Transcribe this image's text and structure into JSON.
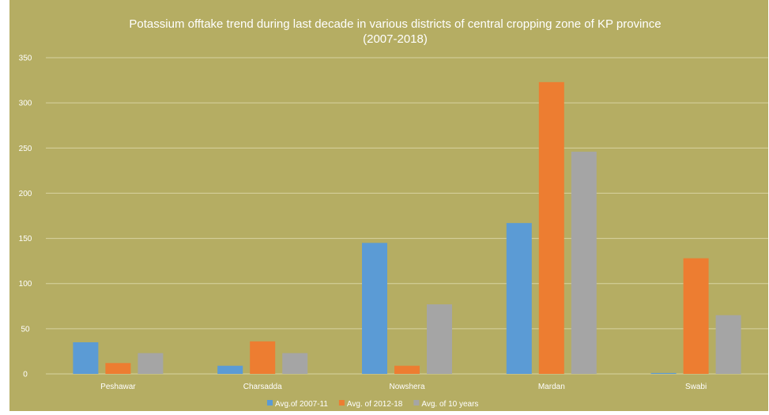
{
  "chart_data": {
    "type": "bar",
    "title": "Potassium offtake trend during last decade in various districts of  central cropping zone of KP province",
    "subtitle": "(2007-2018)",
    "xlabel": "",
    "ylabel": "",
    "categories": [
      "Peshawar",
      "Charsadda",
      "Nowshera",
      "Mardan",
      "Swabi"
    ],
    "series": [
      {
        "name": "Avg.of 2007-11",
        "color": "#5b9bd5",
        "values": [
          35,
          9,
          145,
          167,
          1
        ]
      },
      {
        "name": "Avg. of 2012-18",
        "color": "#ed7d31",
        "values": [
          12,
          36,
          9,
          323,
          128
        ]
      },
      {
        "name": "Avg. of 10 years",
        "color": "#a5a5a5",
        "values": [
          23,
          23,
          77,
          246,
          65
        ]
      }
    ],
    "ylim": [
      0,
      350
    ],
    "yticks": [
      "0",
      "50",
      "100",
      "150",
      "200",
      "250",
      "300",
      "350"
    ],
    "grid": true,
    "legend": "bottom",
    "background_color": "#b5ad63",
    "gridline_color": "#d8d3a2"
  }
}
